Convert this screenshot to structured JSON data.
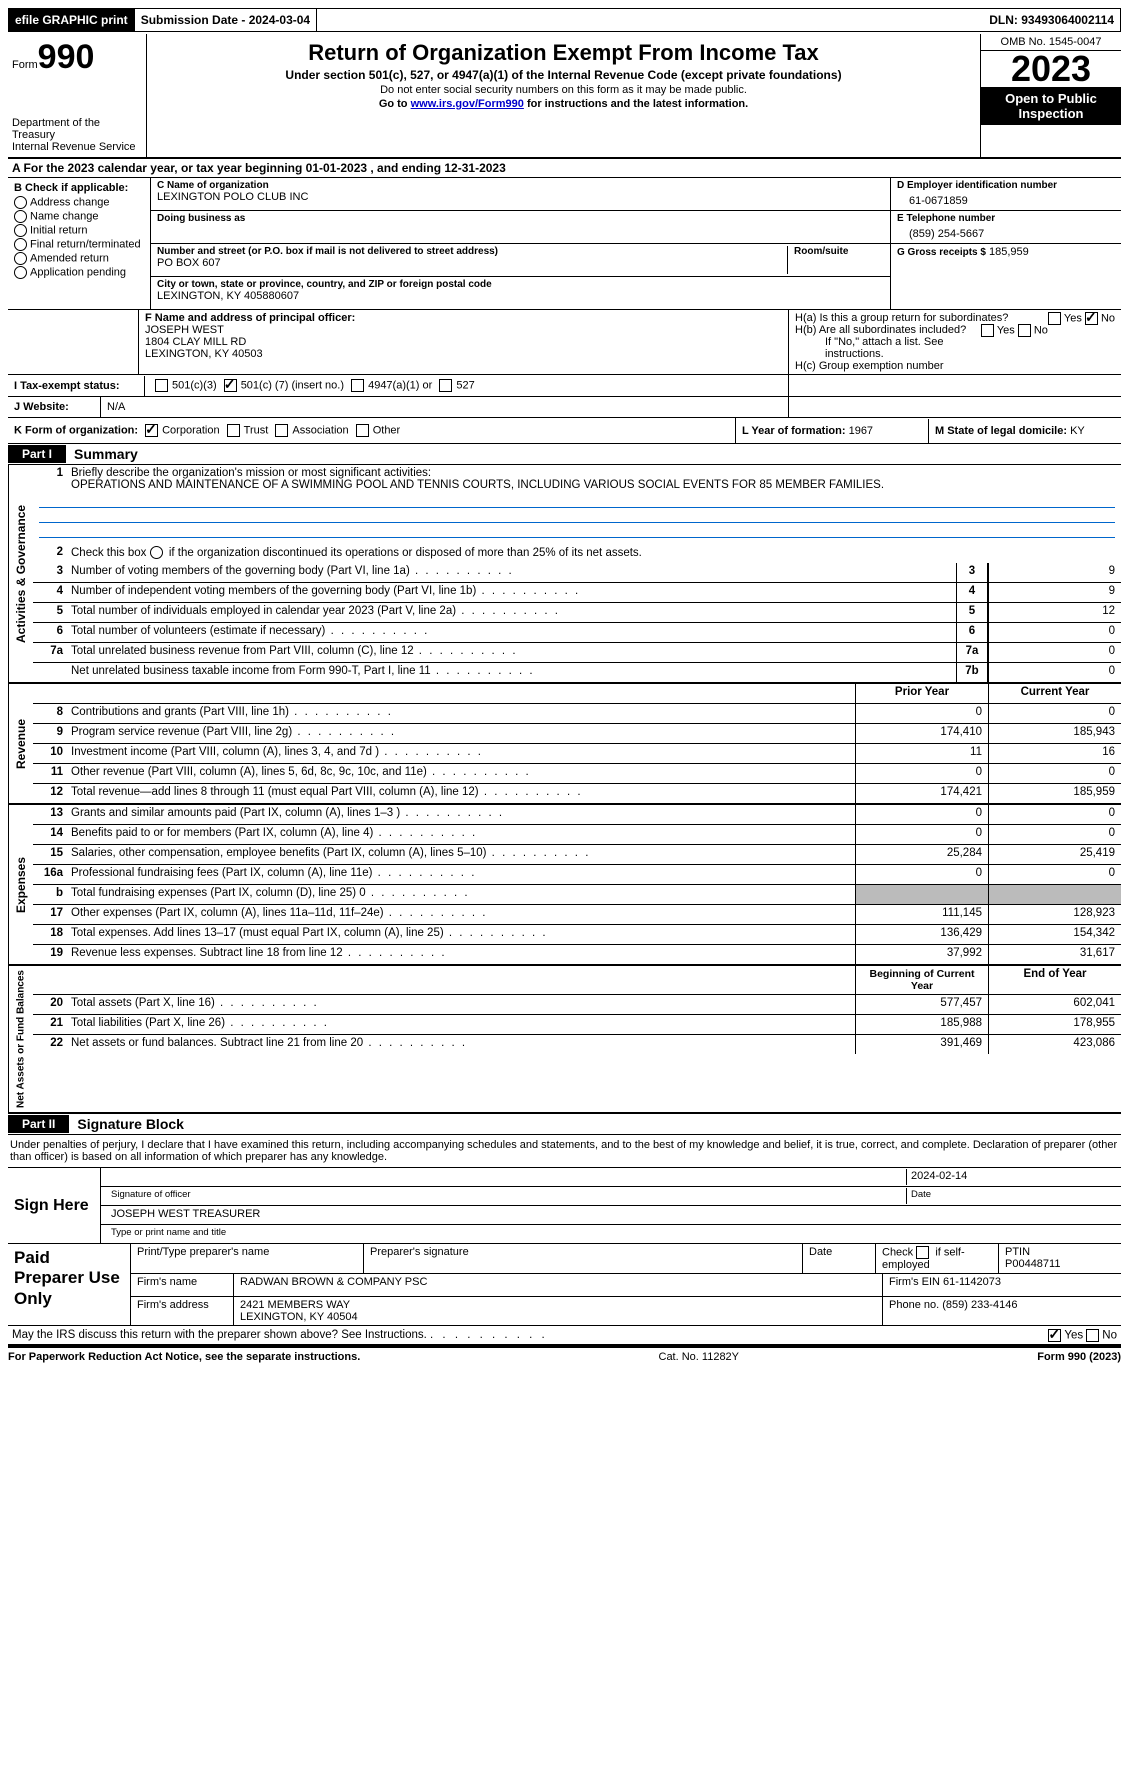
{
  "topbar": {
    "efile": "efile GRAPHIC print",
    "submission": "Submission Date - 2024-03-04",
    "dln": "DLN: 93493064002114"
  },
  "header": {
    "form_label": "Form",
    "form_number": "990",
    "dept": "Department of the Treasury",
    "irs": "Internal Revenue Service",
    "title": "Return of Organization Exempt From Income Tax",
    "subtitle": "Under section 501(c), 527, or 4947(a)(1) of the Internal Revenue Code (except private foundations)",
    "warn": "Do not enter social security numbers on this form as it may be made public.",
    "goto_pre": "Go to ",
    "goto_link": "www.irs.gov/Form990",
    "goto_post": " for instructions and the latest information.",
    "omb": "OMB No. 1545-0047",
    "year": "2023",
    "open": "Open to Public Inspection"
  },
  "line_a": "A  For the 2023 calendar year, or tax year beginning 01-01-2023    , and ending 12-31-2023",
  "box_b": {
    "title": "B Check if applicable:",
    "opts": [
      "Address change",
      "Name change",
      "Initial return",
      "Final return/terminated",
      "Amended return",
      "Application pending"
    ]
  },
  "box_c": {
    "name_lbl": "C Name of organization",
    "name": "LEXINGTON POLO CLUB INC",
    "dba_lbl": "Doing business as",
    "street_lbl": "Number and street (or P.O. box if mail is not delivered to street address)",
    "street": "PO BOX 607",
    "room_lbl": "Room/suite",
    "city_lbl": "City or town, state or province, country, and ZIP or foreign postal code",
    "city": "LEXINGTON, KY  405880607"
  },
  "box_d": {
    "ein_lbl": "D Employer identification number",
    "ein": "61-0671859",
    "phone_lbl": "E Telephone number",
    "phone": "(859) 254-5667",
    "gross_lbl": "G Gross receipts $",
    "gross": "185,959"
  },
  "officer": {
    "f_lbl": "F  Name and address of principal officer:",
    "name": "JOSEPH WEST",
    "addr1": "1804 CLAY MILL RD",
    "addr2": "LEXINGTON, KY  40503",
    "ha": "H(a)  Is this a group return for subordinates?",
    "hb": "H(b)  Are all subordinates included?",
    "hb_note": "If \"No,\" attach a list. See instructions.",
    "hc": "H(c)  Group exemption number"
  },
  "status": {
    "i_lbl": "I    Tax-exempt status:",
    "opt1": "501(c)(3)",
    "opt2_pre": "501(c) (",
    "opt2_no": "7",
    "opt2_post": ") (insert no.)",
    "opt3": "4947(a)(1) or",
    "opt4": "527"
  },
  "website": {
    "j_lbl": "J    Website:",
    "value": "N/A"
  },
  "korg": {
    "k_lbl": "K Form of organization:",
    "opts": [
      "Corporation",
      "Trust",
      "Association",
      "Other"
    ],
    "l_lbl": "L Year of formation:",
    "l_val": "1967",
    "m_lbl": "M State of legal domicile:",
    "m_val": "KY"
  },
  "part1": {
    "tag": "Part I",
    "title": "Summary"
  },
  "mission": {
    "num": "1",
    "lbl": "Briefly describe the organization's mission or most significant activities:",
    "text": "OPERATIONS AND MAINTENANCE OF A SWIMMING POOL AND TENNIS COURTS, INCLUDING VARIOUS SOCIAL EVENTS FOR 85 MEMBER FAMILIES."
  },
  "line2": "Check this box      if the organization discontinued its operations or disposed of more than 25% of its net assets.",
  "gov_rows": [
    {
      "n": "3",
      "t": "Number of voting members of the governing body (Part VI, line 1a)",
      "b": "3",
      "v": "9"
    },
    {
      "n": "4",
      "t": "Number of independent voting members of the governing body (Part VI, line 1b)",
      "b": "4",
      "v": "9"
    },
    {
      "n": "5",
      "t": "Total number of individuals employed in calendar year 2023 (Part V, line 2a)",
      "b": "5",
      "v": "12"
    },
    {
      "n": "6",
      "t": "Total number of volunteers (estimate if necessary)",
      "b": "6",
      "v": "0"
    },
    {
      "n": "7a",
      "t": "Total unrelated business revenue from Part VIII, column (C), line 12",
      "b": "7a",
      "v": "0"
    },
    {
      "n": "  ",
      "t": "Net unrelated business taxable income from Form 990-T, Part I, line 11",
      "b": "7b",
      "v": "0"
    }
  ],
  "rev_hdr": {
    "py": "Prior Year",
    "cy": "Current Year"
  },
  "rev_rows": [
    {
      "n": "8",
      "t": "Contributions and grants (Part VIII, line 1h)",
      "py": "0",
      "cy": "0"
    },
    {
      "n": "9",
      "t": "Program service revenue (Part VIII, line 2g)",
      "py": "174,410",
      "cy": "185,943"
    },
    {
      "n": "10",
      "t": "Investment income (Part VIII, column (A), lines 3, 4, and 7d )",
      "py": "11",
      "cy": "16"
    },
    {
      "n": "11",
      "t": "Other revenue (Part VIII, column (A), lines 5, 6d, 8c, 9c, 10c, and 11e)",
      "py": "0",
      "cy": "0"
    },
    {
      "n": "12",
      "t": "Total revenue—add lines 8 through 11 (must equal Part VIII, column (A), line 12)",
      "py": "174,421",
      "cy": "185,959"
    }
  ],
  "exp_rows": [
    {
      "n": "13",
      "t": "Grants and similar amounts paid (Part IX, column (A), lines 1–3 )",
      "py": "0",
      "cy": "0"
    },
    {
      "n": "14",
      "t": "Benefits paid to or for members (Part IX, column (A), line 4)",
      "py": "0",
      "cy": "0"
    },
    {
      "n": "15",
      "t": "Salaries, other compensation, employee benefits (Part IX, column (A), lines 5–10)",
      "py": "25,284",
      "cy": "25,419"
    },
    {
      "n": "16a",
      "t": "Professional fundraising fees (Part IX, column (A), line 11e)",
      "py": "0",
      "cy": "0"
    },
    {
      "n": "b",
      "t": "Total fundraising expenses (Part IX, column (D), line 25) 0",
      "py": "",
      "cy": "",
      "grey": true
    },
    {
      "n": "17",
      "t": "Other expenses (Part IX, column (A), lines 11a–11d, 11f–24e)",
      "py": "111,145",
      "cy": "128,923"
    },
    {
      "n": "18",
      "t": "Total expenses. Add lines 13–17 (must equal Part IX, column (A), line 25)",
      "py": "136,429",
      "cy": "154,342"
    },
    {
      "n": "19",
      "t": "Revenue less expenses. Subtract line 18 from line 12",
      "py": "37,992",
      "cy": "31,617"
    }
  ],
  "net_hdr": {
    "py": "Beginning of Current Year",
    "cy": "End of Year"
  },
  "net_rows": [
    {
      "n": "20",
      "t": "Total assets (Part X, line 16)",
      "py": "577,457",
      "cy": "602,041"
    },
    {
      "n": "21",
      "t": "Total liabilities (Part X, line 26)",
      "py": "185,988",
      "cy": "178,955"
    },
    {
      "n": "22",
      "t": "Net assets or fund balances. Subtract line 21 from line 20",
      "py": "391,469",
      "cy": "423,086"
    }
  ],
  "part2": {
    "tag": "Part II",
    "title": "Signature Block"
  },
  "sig": {
    "decl": "Under penalties of perjury, I declare that I have examined this return, including accompanying schedules and statements, and to the best of my knowledge and belief, it is true, correct, and complete. Declaration of preparer (other than officer) is based on all information of which preparer has any knowledge.",
    "sign_here": "Sign Here",
    "sig_officer_lbl": "Signature of officer",
    "date_lbl": "Date",
    "date": "2024-02-14",
    "officer": "JOSEPH WEST TREASURER",
    "type_lbl": "Type or print name and title"
  },
  "paid": {
    "title": "Paid Preparer Use Only",
    "h1": "Print/Type preparer's name",
    "h2": "Preparer's signature",
    "h3": "Date",
    "h4_pre": "Check",
    "h4_post": "if self-employed",
    "h5": "PTIN",
    "ptin": "P00448711",
    "firm_name_lbl": "Firm's name",
    "firm_name": "RADWAN BROWN & COMPANY PSC",
    "firm_ein_lbl": "Firm's EIN",
    "firm_ein": "61-1142073",
    "firm_addr_lbl": "Firm's address",
    "firm_addr1": "2421 MEMBERS WAY",
    "firm_addr2": "LEXINGTON, KY  40504",
    "phone_lbl": "Phone no.",
    "phone": "(859) 233-4146"
  },
  "discuss": "May the IRS discuss this return with the preparer shown above? See Instructions.",
  "footer": {
    "left": "For Paperwork Reduction Act Notice, see the separate instructions.",
    "mid": "Cat. No. 11282Y",
    "right": "Form 990 (2023)"
  },
  "labels": {
    "yes": "Yes",
    "no": "No"
  }
}
